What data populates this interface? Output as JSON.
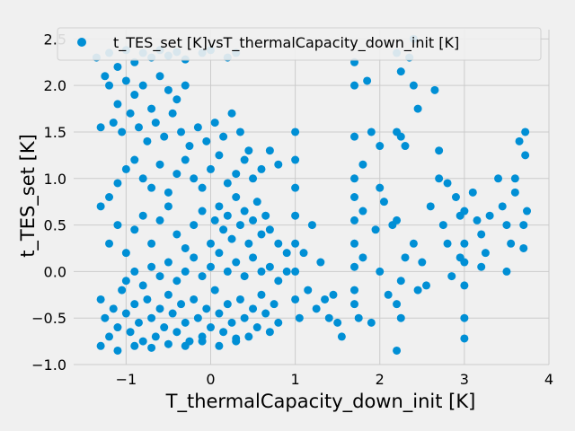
{
  "chart_data": {
    "type": "scatter",
    "xlabel": "T_thermalCapacity_down_init [K]",
    "ylabel": "t_TES_set [K]",
    "xlim": [
      -1.62,
      4.0
    ],
    "ylim": [
      -1.0,
      2.6
    ],
    "xticks": [
      -1,
      0,
      1,
      2,
      3,
      4
    ],
    "xtick_labels": [
      "−1",
      "0",
      "1",
      "2",
      "3",
      "4"
    ],
    "yticks": [
      -1.0,
      -0.5,
      0.0,
      0.5,
      1.0,
      1.5,
      2.0,
      2.5
    ],
    "ytick_labels": [
      "−1.0",
      "−0.5",
      "0.0",
      "0.5",
      "1.0",
      "1.5",
      "2.0",
      "2.5"
    ],
    "grid": true,
    "legend_position": "top-right",
    "series": [
      {
        "name": "t_TES_set [K]vsT_thermalCapacity_down_init [K]",
        "color": "#008fd5",
        "points": [
          [
            -1.35,
            2.3
          ],
          [
            -1.25,
            2.1
          ],
          [
            -1.2,
            2.35
          ],
          [
            -1.1,
            2.2
          ],
          [
            -1.0,
            2.38
          ],
          [
            -0.9,
            2.25
          ],
          [
            -0.8,
            2.35
          ],
          [
            -0.7,
            2.3
          ],
          [
            -0.6,
            2.38
          ],
          [
            -0.5,
            2.32
          ],
          [
            -0.4,
            2.36
          ],
          [
            -0.3,
            2.28
          ],
          [
            -0.1,
            2.35
          ],
          [
            0.0,
            2.38
          ],
          [
            0.2,
            2.3
          ],
          [
            0.3,
            2.35
          ],
          [
            -1.2,
            2.0
          ],
          [
            -1.1,
            1.8
          ],
          [
            -1.0,
            2.05
          ],
          [
            -0.9,
            1.9
          ],
          [
            -0.8,
            2.0
          ],
          [
            -0.7,
            1.75
          ],
          [
            -0.6,
            2.1
          ],
          [
            -0.5,
            1.95
          ],
          [
            -0.4,
            1.85
          ],
          [
            -0.3,
            2.0
          ],
          [
            -1.3,
            1.55
          ],
          [
            -1.15,
            1.6
          ],
          [
            -1.05,
            1.5
          ],
          [
            -0.95,
            1.7
          ],
          [
            -0.85,
            1.55
          ],
          [
            -0.75,
            1.4
          ],
          [
            -0.65,
            1.6
          ],
          [
            -0.55,
            1.45
          ],
          [
            -0.45,
            1.7
          ],
          [
            -0.35,
            1.5
          ],
          [
            -0.25,
            1.35
          ],
          [
            -0.15,
            1.55
          ],
          [
            -0.05,
            1.4
          ],
          [
            0.05,
            1.6
          ],
          [
            0.15,
            1.45
          ],
          [
            0.25,
            1.7
          ],
          [
            0.35,
            1.5
          ],
          [
            0.45,
            1.3
          ],
          [
            -1.3,
            0.7
          ],
          [
            -1.2,
            0.8
          ],
          [
            -1.1,
            0.95
          ],
          [
            -1.0,
            1.1
          ],
          [
            -0.9,
            1.2
          ],
          [
            -0.8,
            1.0
          ],
          [
            -0.7,
            0.9
          ],
          [
            -0.6,
            1.15
          ],
          [
            -0.5,
            0.85
          ],
          [
            -0.4,
            1.05
          ],
          [
            -0.3,
            1.2
          ],
          [
            -0.2,
            1.0
          ],
          [
            -0.1,
            0.9
          ],
          [
            0.0,
            1.1
          ],
          [
            0.1,
            1.25
          ],
          [
            0.2,
            0.95
          ],
          [
            0.3,
            1.05
          ],
          [
            0.4,
            1.2
          ],
          [
            0.5,
            1.0
          ],
          [
            0.6,
            1.1
          ],
          [
            0.7,
            1.3
          ],
          [
            0.8,
            1.15
          ],
          [
            -1.2,
            0.3
          ],
          [
            -1.1,
            0.5
          ],
          [
            -1.0,
            0.2
          ],
          [
            -0.9,
            0.45
          ],
          [
            -0.8,
            0.6
          ],
          [
            -0.7,
            0.3
          ],
          [
            -0.6,
            0.55
          ],
          [
            -0.5,
            0.7
          ],
          [
            -0.4,
            0.4
          ],
          [
            -0.3,
            0.25
          ],
          [
            -0.2,
            0.5
          ],
          [
            -0.1,
            0.65
          ],
          [
            0.0,
            0.3
          ],
          [
            0.05,
            0.55
          ],
          [
            0.1,
            0.7
          ],
          [
            0.15,
            0.45
          ],
          [
            0.2,
            0.6
          ],
          [
            0.25,
            0.35
          ],
          [
            0.3,
            0.8
          ],
          [
            0.35,
            0.5
          ],
          [
            0.4,
            0.65
          ],
          [
            0.45,
            0.3
          ],
          [
            0.5,
            0.55
          ],
          [
            0.55,
            0.75
          ],
          [
            0.6,
            0.4
          ],
          [
            0.65,
            0.6
          ],
          [
            0.7,
            0.45
          ],
          [
            0.8,
            0.3
          ],
          [
            0.9,
            0.2
          ],
          [
            -1.3,
            -0.3
          ],
          [
            -1.25,
            -0.5
          ],
          [
            -1.2,
            -0.7
          ],
          [
            -1.15,
            -0.4
          ],
          [
            -1.1,
            -0.6
          ],
          [
            -1.05,
            -0.2
          ],
          [
            -1.0,
            -0.45
          ],
          [
            -0.95,
            -0.65
          ],
          [
            -0.9,
            -0.35
          ],
          [
            -0.85,
            -0.55
          ],
          [
            -0.8,
            -0.75
          ],
          [
            -0.75,
            -0.3
          ],
          [
            -0.7,
            -0.5
          ],
          [
            -0.65,
            -0.7
          ],
          [
            -0.6,
            -0.4
          ],
          [
            -0.55,
            -0.6
          ],
          [
            -0.5,
            -0.25
          ],
          [
            -0.45,
            -0.45
          ],
          [
            -0.4,
            -0.65
          ],
          [
            -0.35,
            -0.35
          ],
          [
            -0.3,
            -0.55
          ],
          [
            -0.25,
            -0.75
          ],
          [
            -0.2,
            -0.3
          ],
          [
            -0.15,
            -0.5
          ],
          [
            -0.1,
            -0.7
          ],
          [
            -0.05,
            -0.4
          ],
          [
            0.0,
            -0.6
          ],
          [
            0.05,
            -0.2
          ],
          [
            0.1,
            -0.45
          ],
          [
            0.15,
            -0.65
          ],
          [
            0.2,
            -0.35
          ],
          [
            0.25,
            -0.55
          ],
          [
            0.3,
            -0.75
          ],
          [
            0.35,
            -0.3
          ],
          [
            0.4,
            -0.5
          ],
          [
            0.45,
            -0.7
          ],
          [
            0.5,
            -0.4
          ],
          [
            0.55,
            -0.6
          ],
          [
            0.6,
            -0.25
          ],
          [
            0.65,
            -0.45
          ],
          [
            0.7,
            -0.65
          ],
          [
            0.75,
            -0.35
          ],
          [
            0.8,
            -0.55
          ],
          [
            -1.0,
            -0.1
          ],
          [
            -0.9,
            0.0
          ],
          [
            -0.8,
            -0.15
          ],
          [
            -0.7,
            0.05
          ],
          [
            -0.6,
            -0.05
          ],
          [
            -0.5,
            0.1
          ],
          [
            -0.4,
            -0.1
          ],
          [
            -0.3,
            0.0
          ],
          [
            -0.2,
            0.15
          ],
          [
            -0.1,
            -0.05
          ],
          [
            0.0,
            0.05
          ],
          [
            0.1,
            0.2
          ],
          [
            0.2,
            0.0
          ],
          [
            0.3,
            0.1
          ],
          [
            0.4,
            -0.05
          ],
          [
            0.5,
            0.15
          ],
          [
            0.6,
            0.0
          ],
          [
            0.7,
            0.05
          ],
          [
            0.8,
            -0.1
          ],
          [
            0.9,
            0.0
          ],
          [
            -1.3,
            -0.8
          ],
          [
            -1.1,
            -0.85
          ],
          [
            -0.9,
            -0.8
          ],
          [
            -0.7,
            -0.82
          ],
          [
            -0.5,
            -0.78
          ],
          [
            -0.3,
            -0.8
          ],
          [
            -0.1,
            -0.75
          ],
          [
            0.1,
            -0.8
          ],
          [
            0.3,
            -0.72
          ],
          [
            1.0,
            1.5
          ],
          [
            1.0,
            1.2
          ],
          [
            1.0,
            0.9
          ],
          [
            1.0,
            0.6
          ],
          [
            1.0,
            0.3
          ],
          [
            1.0,
            0.0
          ],
          [
            1.0,
            -0.3
          ],
          [
            1.05,
            -0.5
          ],
          [
            1.1,
            0.2
          ],
          [
            1.15,
            -0.2
          ],
          [
            1.2,
            0.5
          ],
          [
            1.25,
            -0.4
          ],
          [
            1.3,
            0.1
          ],
          [
            1.35,
            -0.3
          ],
          [
            1.4,
            -0.5
          ],
          [
            1.45,
            -0.25
          ],
          [
            1.5,
            -0.55
          ],
          [
            1.55,
            -0.7
          ],
          [
            1.7,
            2.25
          ],
          [
            1.7,
            2.0
          ],
          [
            1.7,
            1.45
          ],
          [
            1.7,
            1.0
          ],
          [
            1.7,
            0.8
          ],
          [
            1.7,
            0.55
          ],
          [
            1.7,
            0.3
          ],
          [
            1.7,
            0.05
          ],
          [
            1.7,
            -0.2
          ],
          [
            1.7,
            -0.35
          ],
          [
            1.75,
            -0.5
          ],
          [
            1.8,
            1.15
          ],
          [
            1.8,
            0.65
          ],
          [
            1.8,
            0.15
          ],
          [
            1.85,
            2.05
          ],
          [
            1.9,
            1.5
          ],
          [
            1.9,
            -0.55
          ],
          [
            1.95,
            0.45
          ],
          [
            2.0,
            1.35
          ],
          [
            2.0,
            0.9
          ],
          [
            2.0,
            0.0
          ],
          [
            2.05,
            0.75
          ],
          [
            2.1,
            -0.25
          ],
          [
            2.15,
            0.5
          ],
          [
            2.2,
            2.35
          ],
          [
            2.25,
            2.15
          ],
          [
            2.2,
            1.5
          ],
          [
            2.25,
            1.45
          ],
          [
            2.3,
            1.35
          ],
          [
            2.2,
            0.55
          ],
          [
            2.25,
            -0.1
          ],
          [
            2.3,
            0.15
          ],
          [
            2.2,
            -0.35
          ],
          [
            2.25,
            -0.5
          ],
          [
            2.2,
            -0.85
          ],
          [
            2.35,
            2.3
          ],
          [
            2.4,
            2.5
          ],
          [
            2.4,
            2.0
          ],
          [
            2.45,
            1.75
          ],
          [
            2.4,
            0.3
          ],
          [
            2.45,
            -0.2
          ],
          [
            2.5,
            0.1
          ],
          [
            2.55,
            -0.15
          ],
          [
            2.6,
            0.7
          ],
          [
            2.65,
            1.95
          ],
          [
            2.7,
            1.0
          ],
          [
            2.7,
            1.3
          ],
          [
            2.75,
            0.5
          ],
          [
            2.8,
            0.95
          ],
          [
            2.8,
            0.3
          ],
          [
            2.85,
            -0.05
          ],
          [
            2.9,
            0.8
          ],
          [
            2.95,
            0.6
          ],
          [
            2.95,
            0.15
          ],
          [
            3.0,
            0.65
          ],
          [
            3.0,
            0.3
          ],
          [
            3.0,
            0.1
          ],
          [
            3.0,
            -0.15
          ],
          [
            3.0,
            -0.5
          ],
          [
            3.0,
            -0.72
          ],
          [
            3.1,
            0.85
          ],
          [
            3.15,
            0.55
          ],
          [
            3.2,
            0.4
          ],
          [
            3.2,
            0.05
          ],
          [
            3.25,
            0.2
          ],
          [
            3.3,
            0.6
          ],
          [
            3.4,
            1.0
          ],
          [
            3.45,
            0.7
          ],
          [
            3.5,
            0.0
          ],
          [
            3.5,
            0.5
          ],
          [
            3.55,
            0.3
          ],
          [
            3.6,
            1.0
          ],
          [
            3.6,
            0.85
          ],
          [
            3.65,
            1.4
          ],
          [
            3.7,
            0.5
          ],
          [
            3.7,
            0.25
          ],
          [
            3.72,
            1.5
          ],
          [
            3.72,
            1.25
          ],
          [
            3.74,
            0.65
          ]
        ]
      }
    ]
  }
}
